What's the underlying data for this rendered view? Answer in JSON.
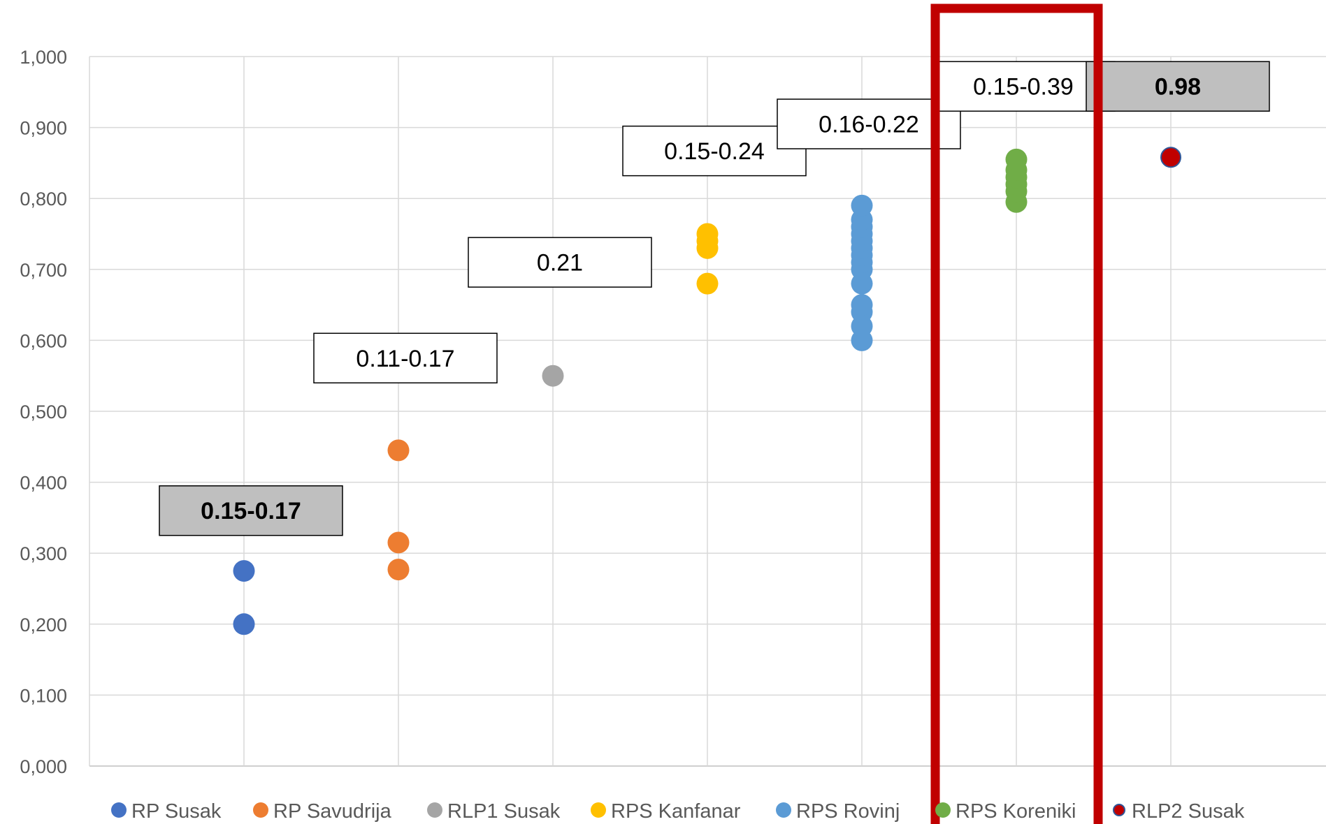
{
  "chart_data": {
    "type": "scatter",
    "title": "",
    "xlabel": "",
    "ylabel": "",
    "ylim": [
      0,
      1
    ],
    "yticks": [
      "0,000",
      "0,100",
      "0,200",
      "0,300",
      "0,400",
      "0,500",
      "0,600",
      "0,700",
      "0,800",
      "0,900",
      "1,000"
    ],
    "grid": true,
    "legend_position": "bottom",
    "series": [
      {
        "name": "RP Susak",
        "color": "#4472C4",
        "x": 1,
        "values": [
          0.2,
          0.275
        ]
      },
      {
        "name": "RP Savudrija",
        "color": "#ED7D31",
        "x": 2,
        "values": [
          0.277,
          0.315,
          0.445
        ]
      },
      {
        "name": "RLP1 Susak",
        "color": "#A5A5A5",
        "x": 3,
        "values": [
          0.55
        ]
      },
      {
        "name": "RPS Kanfanar",
        "color": "#FFC000",
        "x": 4,
        "values": [
          0.68,
          0.73,
          0.74,
          0.75
        ]
      },
      {
        "name": "RPS Rovinj",
        "color": "#5B9BD5",
        "x": 5,
        "values": [
          0.6,
          0.62,
          0.64,
          0.65,
          0.68,
          0.7,
          0.71,
          0.72,
          0.73,
          0.74,
          0.75,
          0.76,
          0.77,
          0.79
        ]
      },
      {
        "name": "RPS Koreniki",
        "color": "#70AD47",
        "x": 6,
        "values": [
          0.795,
          0.81,
          0.82,
          0.83,
          0.84,
          0.855
        ]
      },
      {
        "name": "RLP2 Susak",
        "color": "#C00000",
        "outline": "#2F5597",
        "x": 7,
        "values": [
          0.858
        ]
      }
    ],
    "annotations": [
      {
        "text": "0.15-0.17",
        "x": 1,
        "y": 0.36,
        "bold": true,
        "fill": "#BFBFBF"
      },
      {
        "text": "0.11-0.17",
        "x": 2,
        "y": 0.575,
        "bold": false,
        "fill": "#FFFFFF"
      },
      {
        "text": "0.21",
        "x": 3,
        "y": 0.71,
        "bold": false,
        "fill": "#FFFFFF"
      },
      {
        "text": "0.15-0.24",
        "x": 4,
        "y": 0.867,
        "bold": false,
        "fill": "#FFFFFF"
      },
      {
        "text": "0.16-0.22",
        "x": 5,
        "y": 0.905,
        "bold": false,
        "fill": "#FFFFFF"
      },
      {
        "text": "0.15-0.39",
        "x": 6,
        "y": 0.958,
        "bold": false,
        "fill": "#FFFFFF"
      },
      {
        "text": "0.98",
        "x": 7,
        "y": 0.958,
        "bold": true,
        "fill": "#BFBFBF"
      }
    ],
    "highlight": {
      "category_x": 6,
      "color": "#C00000"
    }
  }
}
